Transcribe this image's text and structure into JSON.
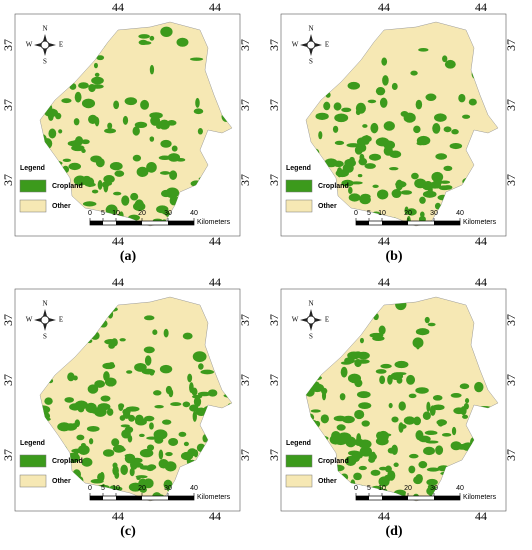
{
  "panels": [
    {
      "label": "(a)"
    },
    {
      "label": "(b)"
    },
    {
      "label": "(c)"
    },
    {
      "label": "(d)"
    }
  ],
  "map": {
    "lon_label": "44",
    "lat_label": "37",
    "compass": {
      "n": "N",
      "s": "S",
      "e": "E",
      "w": "W"
    },
    "legend": {
      "title": "Legend",
      "items": [
        {
          "name": "Cropland",
          "color": "#3c9a1c"
        },
        {
          "name": "Other",
          "color": "#f6e8b4"
        }
      ]
    },
    "scale": {
      "ticks": [
        0,
        5,
        10,
        20,
        30,
        40
      ],
      "unit": "Kilometers"
    }
  }
}
